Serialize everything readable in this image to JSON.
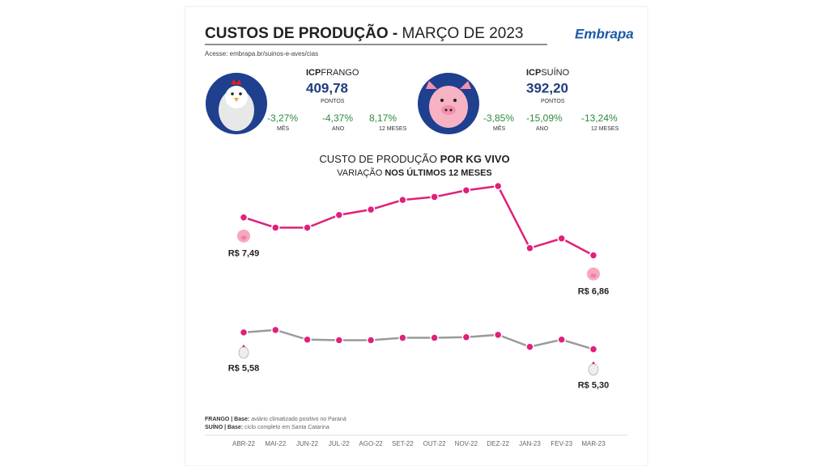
{
  "header": {
    "title_bold": "CUSTOS DE PRODUÇÃO -",
    "title_light": "MARÇO DE 2023",
    "logo": "Embrapa",
    "link": "Acesse: embrapa.br/suinos-e-aves/cias"
  },
  "icp": [
    {
      "label_bold": "ICP",
      "label": "FRANGO",
      "value": "409,78",
      "unit": "PONTOS",
      "variations": [
        {
          "value": "-3,27%",
          "period": "MÊS"
        },
        {
          "value": "-4,37%",
          "period": "ANO"
        },
        {
          "value": "8,17%",
          "period": "12 MESES"
        }
      ]
    },
    {
      "label_bold": "ICP",
      "label": "SUÍNO",
      "value": "392,20",
      "unit": "PONTOS",
      "variations": [
        {
          "value": "-3,85%",
          "period": "MÊS"
        },
        {
          "value": "-15,09%",
          "period": "ANO"
        },
        {
          "value": "-13,24%",
          "period": "12 MESES"
        }
      ]
    }
  ],
  "chart_data": {
    "type": "line",
    "title": [
      "CUSTO DE PRODUÇÃO",
      "POR KG VIVO"
    ],
    "subtitle": [
      "VARIAÇÃO",
      "NOS ÚLTIMOS 12 MESES"
    ],
    "categories": [
      "ABR-22",
      "MAI-22",
      "JUN-22",
      "JUL-22",
      "AGO-22",
      "SET-22",
      "OUT-22",
      "NOV-22",
      "DEZ-22",
      "JAN-23",
      "FEV-23",
      "MAR-23"
    ],
    "ylim": [
      5,
      8.4
    ],
    "series": [
      {
        "color": "#e0207a",
        "marker_color": "#e0207a",
        "values": [
          7.49,
          7.32,
          7.32,
          7.53,
          7.62,
          7.78,
          7.83,
          7.94,
          8.01,
          6.98,
          7.14,
          6.86
        ],
        "value_labels": [
          "R$ 7,49",
          null,
          null,
          null,
          null,
          null,
          null,
          null,
          null,
          null,
          null,
          "R$ 6,86"
        ]
      },
      {
        "color": "#9a9a9a",
        "marker_color": "#e0207a",
        "values": [
          5.58,
          5.62,
          5.46,
          5.45,
          5.45,
          5.49,
          5.49,
          5.5,
          5.54,
          5.34,
          5.46,
          5.3
        ],
        "value_labels": [
          "R$ 5,58",
          null,
          null,
          null,
          null,
          null,
          null,
          null,
          null,
          null,
          null,
          "R$ 5,30"
        ]
      }
    ]
  },
  "notes": [
    {
      "bold": "FRANGO | Base:",
      "text": "aviário climatizado positivo no Paraná"
    },
    {
      "bold": "SUÍNO | Base:",
      "text": "ciclo completo em Santa Catarina"
    }
  ]
}
